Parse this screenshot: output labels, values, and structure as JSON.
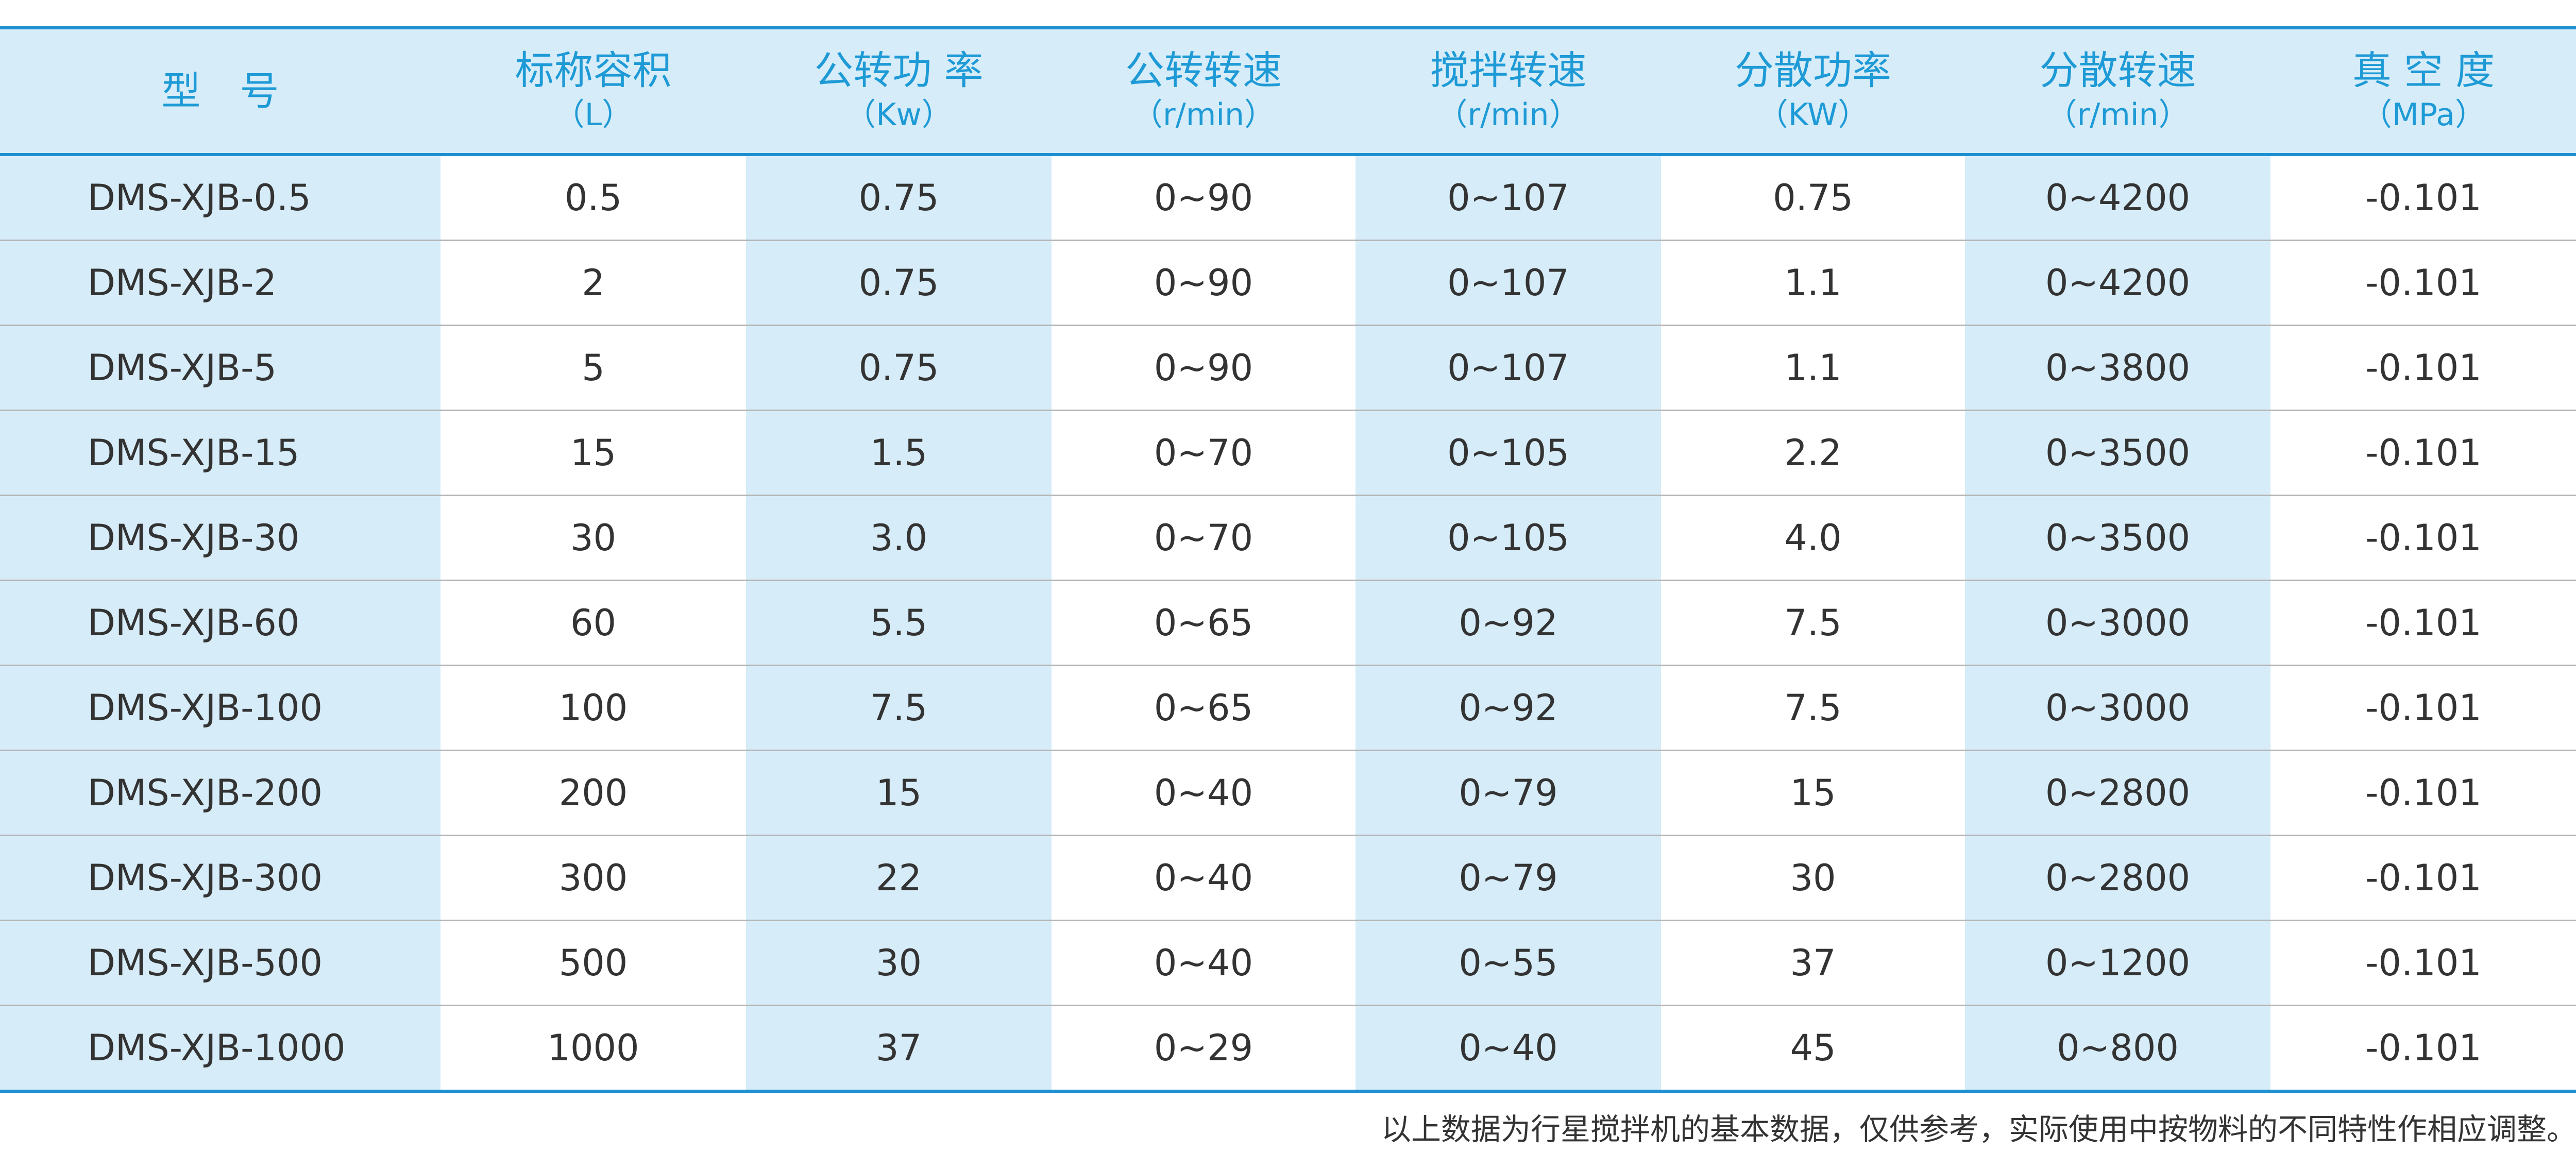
{
  "header": {
    "columns": [
      {
        "title": "型　号"
      },
      {
        "title": "标称容积",
        "unit": "（L）"
      },
      {
        "title": "公转功 率",
        "unit": "（Kw）"
      },
      {
        "title": "公转转速",
        "unit": "（r/min）"
      },
      {
        "title": "搅拌转速",
        "unit": "（r/min）"
      },
      {
        "title": "分散功率",
        "unit": "（KW）"
      },
      {
        "title": "分散转速",
        "unit": "（r/min）"
      },
      {
        "title": "真 空 度",
        "unit": "（MPa）"
      }
    ]
  },
  "table": {
    "rows": [
      [
        "DMS-XJB-0.5",
        "0.5",
        "0.75",
        "0~90",
        "0~107",
        "0.75",
        "0~4200",
        "-0.101"
      ],
      [
        "DMS-XJB-2",
        "2",
        "0.75",
        "0~90",
        "0~107",
        "1.1",
        "0~4200",
        "-0.101"
      ],
      [
        "DMS-XJB-5",
        "5",
        "0.75",
        "0~90",
        "0~107",
        "1.1",
        "0~3800",
        "-0.101"
      ],
      [
        "DMS-XJB-15",
        "15",
        "1.5",
        "0~70",
        "0~105",
        "2.2",
        "0~3500",
        "-0.101"
      ],
      [
        "DMS-XJB-30",
        "30",
        "3.0",
        "0~70",
        "0~105",
        "4.0",
        "0~3500",
        "-0.101"
      ],
      [
        "DMS-XJB-60",
        "60",
        "5.5",
        "0~65",
        "0~92",
        "7.5",
        "0~3000",
        "-0.101"
      ],
      [
        "DMS-XJB-100",
        "100",
        "7.5",
        "0~65",
        "0~92",
        "7.5",
        "0~3000",
        "-0.101"
      ],
      [
        "DMS-XJB-200",
        "200",
        "15",
        "0~40",
        "0~79",
        "15",
        "0~2800",
        "-0.101"
      ],
      [
        "DMS-XJB-300",
        "300",
        "22",
        "0~40",
        "0~79",
        "30",
        "0~2800",
        "-0.101"
      ],
      [
        "DMS-XJB-500",
        "500",
        "30",
        "0~40",
        "0~55",
        "37",
        "0~1200",
        "-0.101"
      ],
      [
        "DMS-XJB-1000",
        "1000",
        "37",
        "0~29",
        "0~40",
        "45",
        "0~800",
        "-0.101"
      ]
    ]
  },
  "footer": {
    "note": "以上数据为行星搅拌机的基本数据，仅供参考，实际使用中按物料的不同特性作相应调整。"
  }
}
